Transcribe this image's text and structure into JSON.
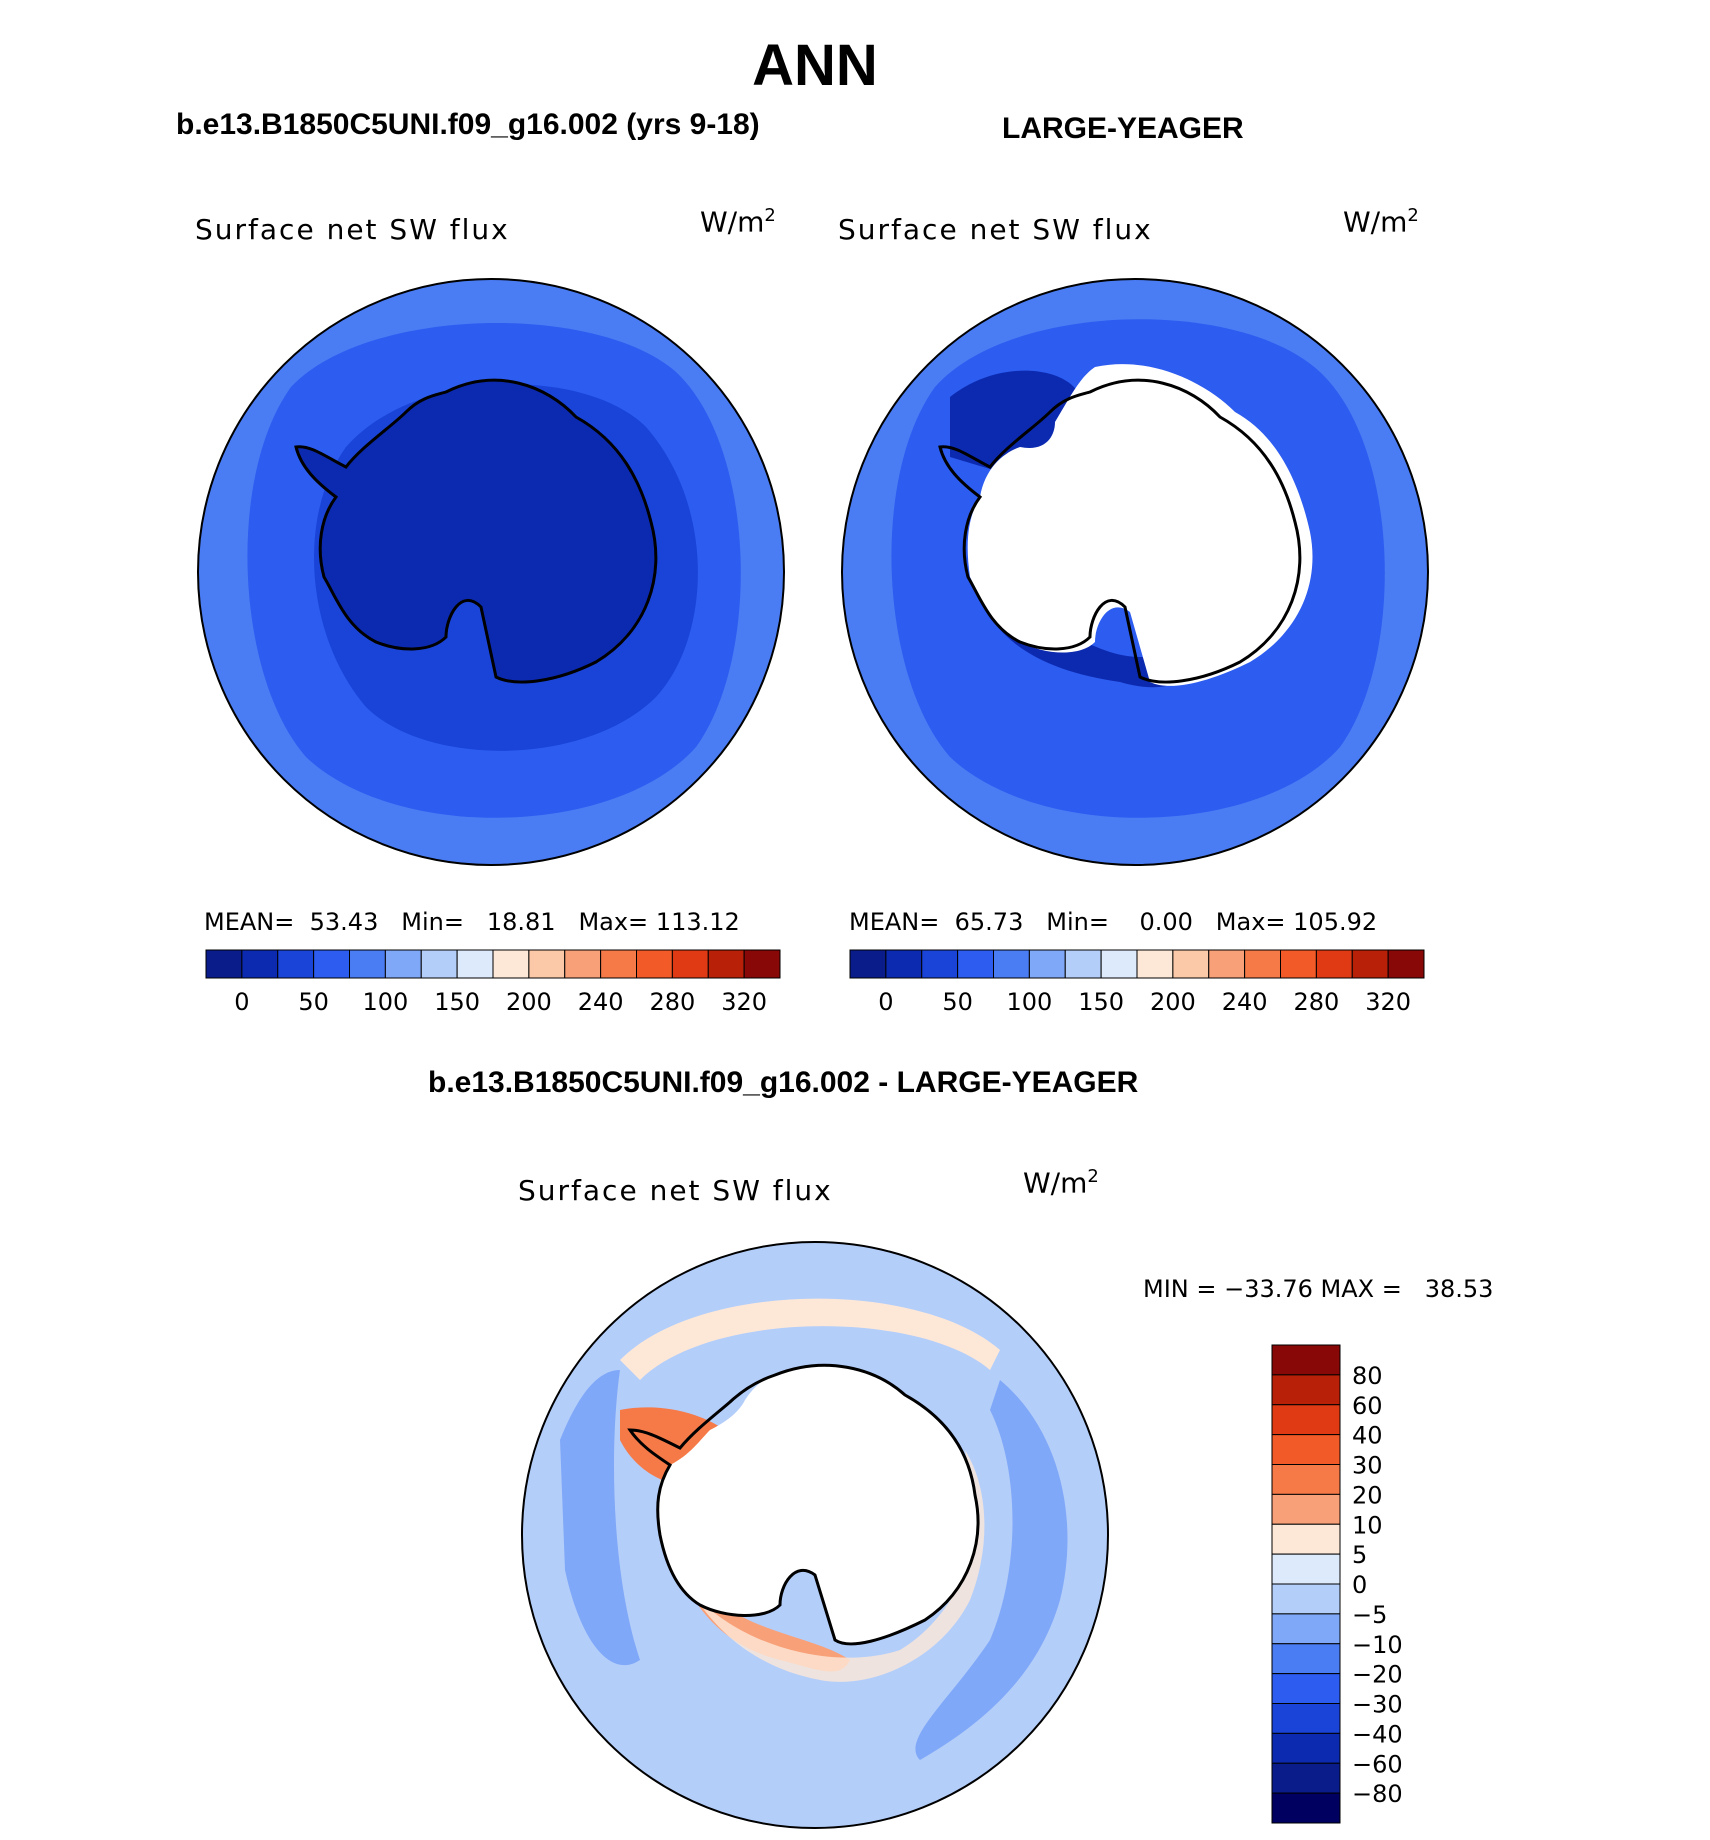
{
  "header": {
    "season": "ANN",
    "case1_title": "b.e13.B1850C5UNI.f09_g16.002 (yrs 9-18)",
    "case2_title": "LARGE-YEAGER",
    "diff_title": "b.e13.B1850C5UNI.f09_g16.002 - LARGE-YEAGER"
  },
  "panels": [
    {
      "id": "model",
      "variable_label": "Surface net SW flux",
      "unit_base": "W/m",
      "unit_exp": "2",
      "mean_label": "MEAN=",
      "mean_value": "53.43",
      "min_label": "Min=",
      "min_value": "18.81",
      "max_label": "Max=",
      "max_value": "113.12"
    },
    {
      "id": "obs",
      "variable_label": "Surface net SW flux",
      "unit_base": "W/m",
      "unit_exp": "2",
      "mean_label": "MEAN=",
      "mean_value": "65.73",
      "min_label": "Min=",
      "min_value": "0.00",
      "max_label": "Max=",
      "max_value": "105.92"
    }
  ],
  "difference": {
    "variable_label": "Surface net SW flux",
    "unit_base": "W/m",
    "unit_exp": "2",
    "minmax_text": "MIN = −33.76 MAX =   38.53"
  },
  "field_colorbar": {
    "colors": [
      "#0a1c8a",
      "#0c2ab0",
      "#1a44d8",
      "#2c5cf0",
      "#4a7cf4",
      "#80a8f8",
      "#b4cefa",
      "#dceafc",
      "#fde8d8",
      "#fbc8a8",
      "#f8a078",
      "#f57a48",
      "#f25a28",
      "#e03a14",
      "#b82008",
      "#880808"
    ],
    "tick_labels": [
      "0",
      "50",
      "100",
      "150",
      "200",
      "240",
      "280",
      "320"
    ]
  },
  "diff_colorbar": {
    "colors": [
      "#880808",
      "#b82008",
      "#e03a14",
      "#f25a28",
      "#f57a48",
      "#f8a078",
      "#fde8d8",
      "#dceafc",
      "#b4cefa",
      "#80a8f8",
      "#4a7cf4",
      "#2c5cf0",
      "#1a44d8",
      "#0c2ab0",
      "#0a1c8a",
      "#000060"
    ],
    "tick_labels": [
      "80",
      "60",
      "40",
      "30",
      "20",
      "10",
      "5",
      "0",
      "−5",
      "−10",
      "−20",
      "−30",
      "−40",
      "−60",
      "−80"
    ]
  },
  "map_colors": {
    "outer_ocean": "#4a7cf4",
    "mid_ocean": "#2c5cf0",
    "inner_ocean": "#1a44d8",
    "ice": "#0c2ab0",
    "land_masked": "#ffffff",
    "diff_light_blue": "#b4cefa",
    "diff_mid_blue": "#80a8f8",
    "diff_pale_orange": "#fde8d8",
    "diff_orange": "#f8a078",
    "diff_red": "#f57a48"
  }
}
